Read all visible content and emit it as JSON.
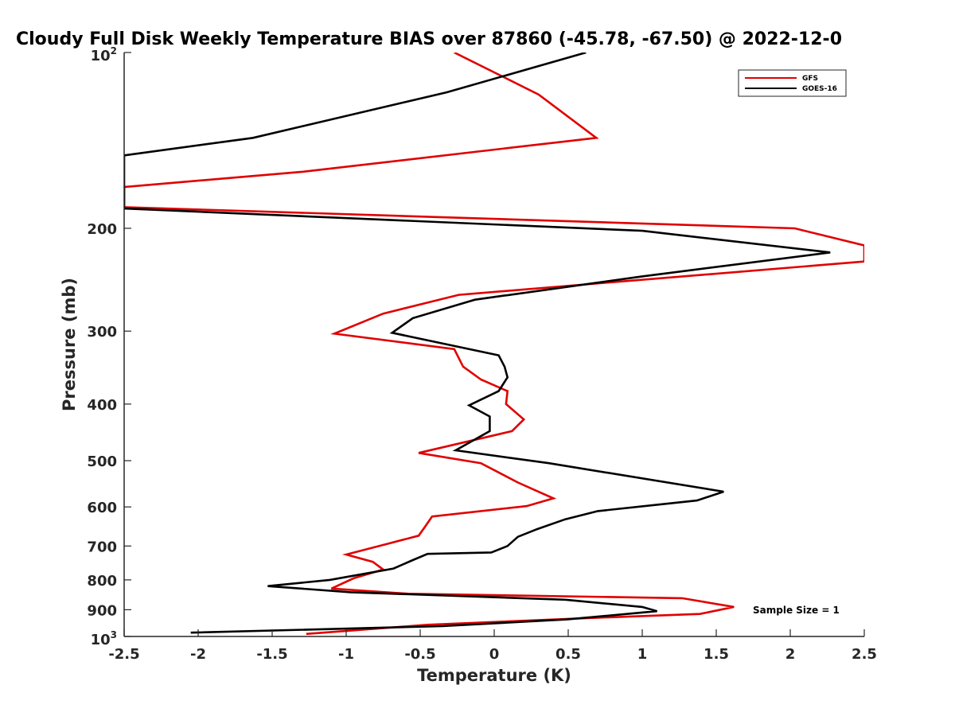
{
  "chart_data": {
    "type": "line",
    "title": "Cloudy Full Disk Weekly Temperature BIAS over 87860 (-45.78, -67.50) @ 2022-12-0",
    "xlabel": "Temperature (K)",
    "ylabel": "Pressure (mb)",
    "xlim": [
      -2.5,
      2.5
    ],
    "ylim": [
      100,
      1000
    ],
    "y_scale": "log",
    "y_reversed": true,
    "x_ticks": [
      -2.5,
      -2,
      -1.5,
      -1,
      -0.5,
      0,
      0.5,
      1,
      1.5,
      2,
      2.5
    ],
    "x_tick_labels": [
      "-2.5",
      "-2",
      "-1.5",
      "-1",
      "-0.5",
      "0",
      "0.5",
      "1",
      "1.5",
      "2",
      "2.5"
    ],
    "y_ticks": [
      200,
      300,
      400,
      500,
      600,
      700,
      800,
      900
    ],
    "y_tick_labels": [
      "200",
      "300",
      "400",
      "500",
      "600",
      "700",
      "800",
      "900"
    ],
    "y_tick_base": "10",
    "y_tick_min_exp": "2",
    "y_tick_max_exp": "3",
    "legend_position": "top-right",
    "annotation": "Sample Size = 1",
    "series": [
      {
        "name": "GFS",
        "color": "#e00000",
        "points": [
          [
            -0.27,
            100
          ],
          [
            0.3,
            118
          ],
          [
            0.69,
            140
          ],
          [
            -1.29,
            160
          ],
          [
            -2.5,
            170
          ],
          [
            -2.5,
            184
          ],
          [
            2.03,
            200
          ],
          [
            2.5,
            214
          ],
          [
            2.5,
            228
          ],
          [
            -0.24,
            260
          ],
          [
            -0.75,
            280
          ],
          [
            -1.08,
            303
          ],
          [
            -0.27,
            322
          ],
          [
            -0.21,
            345
          ],
          [
            -0.09,
            363
          ],
          [
            0.09,
            380
          ],
          [
            0.08,
            400
          ],
          [
            0.2,
            425
          ],
          [
            0.12,
            445
          ],
          [
            -0.51,
            485
          ],
          [
            -0.09,
            505
          ],
          [
            0.16,
            545
          ],
          [
            0.4,
            580
          ],
          [
            0.22,
            598
          ],
          [
            -0.42,
            623
          ],
          [
            -0.47,
            650
          ],
          [
            -0.51,
            672
          ],
          [
            -0.73,
            695
          ],
          [
            -1.0,
            724
          ],
          [
            -0.82,
            745
          ],
          [
            -0.75,
            768
          ],
          [
            -0.95,
            795
          ],
          [
            -1.1,
            828
          ],
          [
            -0.58,
            845
          ],
          [
            1.27,
            860
          ],
          [
            1.62,
            890
          ],
          [
            1.39,
            915
          ],
          [
            0.63,
            930
          ],
          [
            -0.45,
            955
          ],
          [
            -1.27,
            990
          ]
        ]
      },
      {
        "name": "GOES-16",
        "color": "#000000",
        "points": [
          [
            0.62,
            100
          ],
          [
            -0.32,
            117
          ],
          [
            -1.63,
            140
          ],
          [
            -2.5,
            150
          ],
          [
            -2.5,
            185
          ],
          [
            1.0,
            202
          ],
          [
            2.27,
            220
          ],
          [
            0.99,
            242
          ],
          [
            -0.13,
            265
          ],
          [
            -0.55,
            285
          ],
          [
            -0.69,
            302
          ],
          [
            0.03,
            330
          ],
          [
            0.07,
            345
          ],
          [
            0.09,
            360
          ],
          [
            0.03,
            380
          ],
          [
            -0.17,
            402
          ],
          [
            -0.03,
            420
          ],
          [
            -0.03,
            445
          ],
          [
            -0.26,
            480
          ],
          [
            0.37,
            505
          ],
          [
            1.55,
            565
          ],
          [
            1.37,
            585
          ],
          [
            0.7,
            610
          ],
          [
            0.48,
            630
          ],
          [
            0.29,
            655
          ],
          [
            0.16,
            675
          ],
          [
            0.09,
            700
          ],
          [
            -0.02,
            718
          ],
          [
            -0.45,
            722
          ],
          [
            -0.55,
            740
          ],
          [
            -0.68,
            765
          ],
          [
            -1.11,
            800
          ],
          [
            -1.53,
            820
          ],
          [
            -0.97,
            840
          ],
          [
            0.48,
            865
          ],
          [
            1.0,
            890
          ],
          [
            1.1,
            905
          ],
          [
            0.49,
            935
          ],
          [
            -0.35,
            960
          ],
          [
            -2.05,
            985
          ]
        ]
      }
    ]
  }
}
